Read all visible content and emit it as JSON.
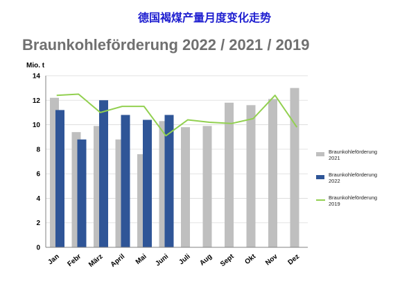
{
  "header": {
    "title": "德国褐煤产量月度变化走势"
  },
  "chart_data": {
    "type": "bar",
    "title": "Braunkohleförderung 2022 / 2021 / 2019",
    "ylabel": "Mio. t",
    "ylim": [
      0,
      14
    ],
    "yticks": [
      0,
      2,
      4,
      6,
      8,
      10,
      12,
      14
    ],
    "categories": [
      "Jan",
      "Febr",
      "März",
      "April",
      "Mai",
      "Juni",
      "Juli",
      "Aug",
      "Sept",
      "Okt",
      "Nov",
      "Dez"
    ],
    "series": [
      {
        "name": "Braunkohleförderung 2021",
        "kind": "bar",
        "color": "#bfbfbf",
        "values": [
          12.2,
          9.4,
          9.9,
          8.8,
          7.6,
          10.3,
          9.8,
          9.9,
          11.8,
          11.6,
          12.1,
          13.0
        ]
      },
      {
        "name": "Braunkohleförderung 2022",
        "kind": "bar",
        "color": "#2f5597",
        "values": [
          11.2,
          8.8,
          12.0,
          10.8,
          10.4,
          10.8,
          null,
          null,
          null,
          null,
          null,
          null
        ]
      },
      {
        "name": "Braunkohleförderung 2019",
        "kind": "line",
        "color": "#92d050",
        "values": [
          12.4,
          12.5,
          11.0,
          11.5,
          11.5,
          9.1,
          10.4,
          10.2,
          10.1,
          10.5,
          12.4,
          9.8
        ]
      }
    ],
    "legend": {
      "position": "right",
      "entries": [
        {
          "line1": "Braunkohleförderung",
          "line2": "2021",
          "color": "#bfbfbf",
          "shape": "bar"
        },
        {
          "line1": "Braunkohleförderung",
          "line2": "2022",
          "color": "#2f5597",
          "shape": "bar"
        },
        {
          "line1": "Braunkohleförderung",
          "line2": "2019",
          "color": "#92d050",
          "shape": "line"
        }
      ]
    },
    "grid": "horizontal"
  }
}
